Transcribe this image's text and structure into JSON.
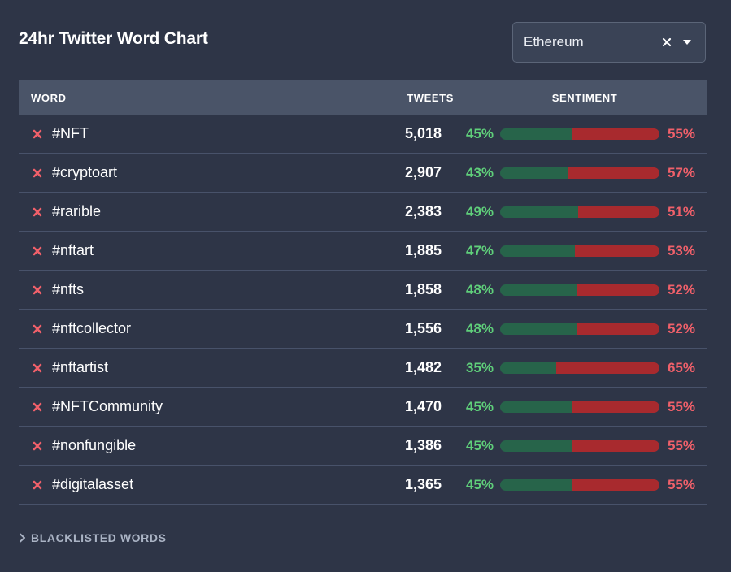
{
  "title": "24hr Twitter Word Chart",
  "select": {
    "value": "Ethereum",
    "clear_icon": "close-icon",
    "dropdown_icon": "caret-down-icon"
  },
  "table": {
    "headers": {
      "word": "WORD",
      "tweets": "TWEETS",
      "sentiment": "SENTIMENT"
    },
    "rows": [
      {
        "word": "#NFT",
        "tweets": "5,018",
        "positive": 45,
        "negative": 55,
        "positive_label": "45%",
        "negative_label": "55%"
      },
      {
        "word": "#cryptoart",
        "tweets": "2,907",
        "positive": 43,
        "negative": 57,
        "positive_label": "43%",
        "negative_label": "57%"
      },
      {
        "word": "#rarible",
        "tweets": "2,383",
        "positive": 49,
        "negative": 51,
        "positive_label": "49%",
        "negative_label": "51%"
      },
      {
        "word": "#nftart",
        "tweets": "1,885",
        "positive": 47,
        "negative": 53,
        "positive_label": "47%",
        "negative_label": "53%"
      },
      {
        "word": "#nfts",
        "tweets": "1,858",
        "positive": 48,
        "negative": 52,
        "positive_label": "48%",
        "negative_label": "52%"
      },
      {
        "word": "#nftcollector",
        "tweets": "1,556",
        "positive": 48,
        "negative": 52,
        "positive_label": "48%",
        "negative_label": "52%"
      },
      {
        "word": "#nftartist",
        "tweets": "1,482",
        "positive": 35,
        "negative": 65,
        "positive_label": "35%",
        "negative_label": "65%"
      },
      {
        "word": "#NFTCommunity",
        "tweets": "1,470",
        "positive": 45,
        "negative": 55,
        "positive_label": "45%",
        "negative_label": "55%"
      },
      {
        "word": "#nonfungible",
        "tweets": "1,386",
        "positive": 45,
        "negative": 55,
        "positive_label": "45%",
        "negative_label": "55%"
      },
      {
        "word": "#digitalasset",
        "tweets": "1,365",
        "positive": 45,
        "negative": 55,
        "positive_label": "45%",
        "negative_label": "55%"
      }
    ]
  },
  "footer": {
    "label": "BLACKLISTED WORDS",
    "icon": "chevron-right-icon"
  },
  "colors": {
    "background": "#2e3547",
    "header_bg": "#4a5468",
    "positive": "#5fcf7a",
    "negative": "#f0606a",
    "positive_bar": "#27644a",
    "negative_bar": "#a82a2e",
    "remove_icon": "#f0606a"
  }
}
